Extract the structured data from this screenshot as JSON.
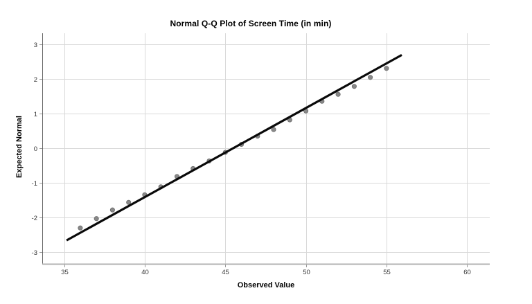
{
  "chart_data": {
    "type": "scatter",
    "title": "Normal Q-Q Plot of Screen Time (in min)",
    "xlabel": "Observed Value",
    "ylabel": "Expected Normal",
    "x_ticks": [
      35,
      40,
      45,
      50,
      55,
      60
    ],
    "y_ticks": [
      3,
      2,
      1,
      0,
      -1,
      -2,
      -3
    ],
    "xlim": [
      33.64,
      61.41
    ],
    "ylim": [
      -3.35,
      3.33
    ],
    "grid": true,
    "legend": "none",
    "points": [
      [
        36,
        -2.31
      ],
      [
        37,
        -2.04
      ],
      [
        38,
        -1.79
      ],
      [
        39,
        -1.57
      ],
      [
        40,
        -1.35
      ],
      [
        41,
        -1.12
      ],
      [
        42,
        -0.82
      ],
      [
        43,
        -0.59
      ],
      [
        44,
        -0.37
      ],
      [
        45,
        -0.12
      ],
      [
        46,
        0.11
      ],
      [
        47,
        0.35
      ],
      [
        48,
        0.54
      ],
      [
        49,
        0.82
      ],
      [
        50,
        1.08
      ],
      [
        51,
        1.36
      ],
      [
        52,
        1.56
      ],
      [
        53,
        1.79
      ],
      [
        54,
        2.05
      ],
      [
        55,
        2.31
      ]
    ],
    "reference_line": {
      "x1": 35.15,
      "y1": -2.67,
      "x2": 55.95,
      "y2": 2.7
    },
    "colors": {
      "background": "#ffffff",
      "grid": "#d9d9d9",
      "axis_x": "#b3b3b3",
      "axis_y": "#666666",
      "tick": "#999999",
      "tick_label": "#333333",
      "point_fill": "#898989",
      "point_border": "#6e6e6e",
      "line": "#0a0a0a",
      "text": "#000000"
    }
  }
}
